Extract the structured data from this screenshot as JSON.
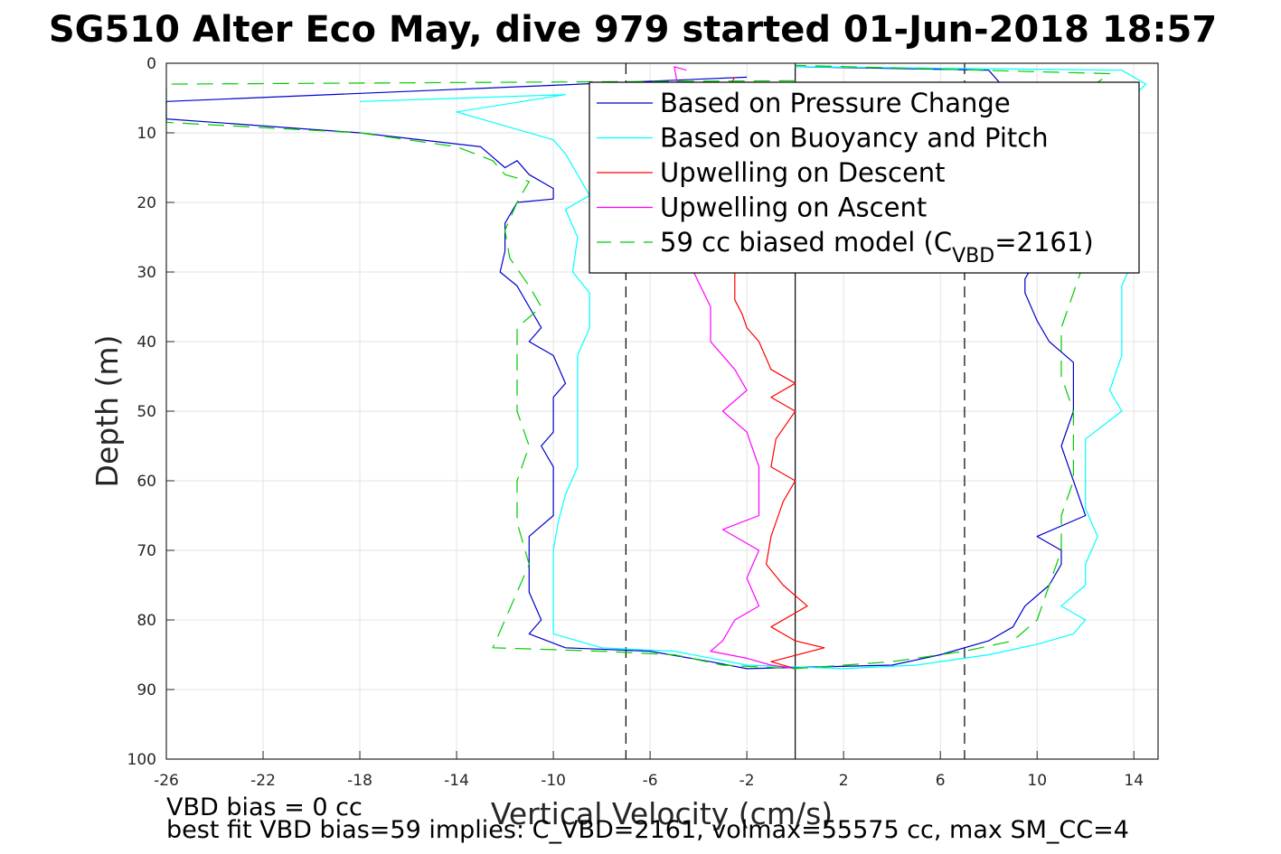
{
  "chart_data": {
    "type": "line",
    "title": "SG510 Alter Eco May, dive 979 started 01-Jun-2018 18:57",
    "xlabel": "Vertical Velocity (cm/s)",
    "ylabel": "Depth (m)",
    "xlim": [
      -26,
      15
    ],
    "ylim": [
      0,
      100
    ],
    "y_reversed": true,
    "grid": true,
    "legend_position": "top-right",
    "xticks": [
      "-26",
      "-22",
      "-18",
      "-14",
      "-10",
      "-6",
      "-2",
      "2",
      "6",
      "10",
      "14"
    ],
    "yticks": [
      "0",
      "10",
      "20",
      "30",
      "40",
      "50",
      "60",
      "70",
      "80",
      "90",
      "100"
    ],
    "reference_lines": {
      "zero_x": 0,
      "dashed_x": [
        -7,
        7
      ],
      "line_color": "#000000"
    },
    "series": [
      {
        "name": "Based on Pressure Change",
        "color": "#0000cc",
        "style": "solid",
        "points": [
          [
            -2,
            2
          ],
          [
            -26,
            5.5
          ],
          [
            -26,
            8
          ],
          [
            -18,
            10
          ],
          [
            -13,
            12
          ],
          [
            -12,
            15
          ],
          [
            -11.5,
            14
          ],
          [
            -11,
            16
          ],
          [
            -10,
            18
          ],
          [
            -10,
            19.5
          ],
          [
            -11.5,
            20
          ],
          [
            -12,
            23
          ],
          [
            -12,
            27
          ],
          [
            -12.2,
            30
          ],
          [
            -11.5,
            32
          ],
          [
            -11,
            35
          ],
          [
            -10.5,
            38
          ],
          [
            -11,
            40
          ],
          [
            -10,
            42
          ],
          [
            -9.5,
            46
          ],
          [
            -10,
            48
          ],
          [
            -10,
            53
          ],
          [
            -10.5,
            55
          ],
          [
            -10,
            58
          ],
          [
            -10,
            62
          ],
          [
            -10,
            65
          ],
          [
            -11,
            68
          ],
          [
            -11,
            72
          ],
          [
            -11,
            76
          ],
          [
            -10.5,
            80
          ],
          [
            -11,
            82
          ],
          [
            -9.5,
            84
          ],
          [
            -6,
            84.5
          ],
          [
            -3.5,
            86
          ],
          [
            -2,
            87
          ],
          [
            4,
            86.5
          ],
          [
            6,
            85
          ],
          [
            8,
            83
          ],
          [
            9,
            81
          ],
          [
            9.5,
            78
          ],
          [
            10.5,
            75
          ],
          [
            11,
            72
          ],
          [
            11,
            70
          ],
          [
            10,
            68
          ],
          [
            12,
            65
          ],
          [
            11.5,
            60
          ],
          [
            11,
            55
          ],
          [
            11.5,
            50
          ],
          [
            11.5,
            45
          ],
          [
            11.5,
            43
          ],
          [
            10.5,
            40
          ],
          [
            10,
            37
          ],
          [
            9.5,
            33
          ],
          [
            9.5,
            31
          ],
          [
            10,
            28
          ],
          [
            11,
            26
          ],
          [
            11,
            22
          ],
          [
            11,
            19
          ],
          [
            10.5,
            15
          ],
          [
            10,
            12
          ],
          [
            9.5,
            9
          ],
          [
            9,
            5
          ],
          [
            8,
            1
          ],
          [
            0,
            0.5
          ]
        ]
      },
      {
        "name": "Based on Buoyancy and Pitch",
        "color": "#00ffff",
        "style": "solid",
        "points": [
          [
            -18,
            5.5
          ],
          [
            -9.5,
            4.5
          ],
          [
            -14,
            7
          ],
          [
            -12,
            9
          ],
          [
            -10,
            11
          ],
          [
            -9.5,
            13
          ],
          [
            -9,
            16
          ],
          [
            -8.5,
            19
          ],
          [
            -9.5,
            21
          ],
          [
            -9,
            25
          ],
          [
            -9.2,
            30
          ],
          [
            -8.5,
            33
          ],
          [
            -8.5,
            38
          ],
          [
            -9,
            42
          ],
          [
            -9,
            48
          ],
          [
            -9,
            53
          ],
          [
            -9,
            58
          ],
          [
            -9.5,
            62
          ],
          [
            -9.8,
            66
          ],
          [
            -10,
            70
          ],
          [
            -10,
            75
          ],
          [
            -10,
            79
          ],
          [
            -10,
            82
          ],
          [
            -8,
            84
          ],
          [
            -5,
            84.5
          ],
          [
            -2,
            86.5
          ],
          [
            2,
            87
          ],
          [
            5,
            86.5
          ],
          [
            8,
            85
          ],
          [
            10,
            83.5
          ],
          [
            11.5,
            82
          ],
          [
            12,
            80
          ],
          [
            11,
            78
          ],
          [
            12,
            75
          ],
          [
            12,
            72
          ],
          [
            12.5,
            68
          ],
          [
            12,
            64
          ],
          [
            12,
            58
          ],
          [
            12,
            54
          ],
          [
            13.5,
            50
          ],
          [
            13,
            47
          ],
          [
            13.5,
            42
          ],
          [
            13.5,
            37
          ],
          [
            13.5,
            32
          ],
          [
            14,
            28
          ],
          [
            14,
            24
          ],
          [
            14,
            20
          ],
          [
            13.5,
            16
          ],
          [
            13,
            12
          ],
          [
            13,
            8
          ],
          [
            14.5,
            3
          ],
          [
            13.5,
            1
          ],
          [
            0,
            0.5
          ]
        ]
      },
      {
        "name": "Upwelling on Descent",
        "color": "#ff0000",
        "style": "solid",
        "points": [
          [
            -2.5,
            2
          ],
          [
            -3,
            5
          ],
          [
            -5,
            8
          ],
          [
            -1.5,
            6
          ],
          [
            -2,
            20
          ],
          [
            -2.5,
            30
          ],
          [
            -2.5,
            34
          ],
          [
            -2.2,
            36
          ],
          [
            -2,
            38
          ],
          [
            -1.5,
            40
          ],
          [
            -1,
            44
          ],
          [
            0,
            46
          ],
          [
            -1,
            48
          ],
          [
            0,
            50
          ],
          [
            -0.8,
            54
          ],
          [
            -1,
            58
          ],
          [
            0,
            60
          ],
          [
            -0.5,
            63
          ],
          [
            -1,
            68
          ],
          [
            -1.2,
            72
          ],
          [
            -0.5,
            75
          ],
          [
            0.5,
            78
          ],
          [
            -1,
            81
          ],
          [
            0,
            83
          ],
          [
            1.2,
            84
          ],
          [
            -1,
            86
          ],
          [
            0,
            87
          ]
        ]
      },
      {
        "name": "Upwelling on Ascent",
        "color": "#ff00ff",
        "style": "solid",
        "points": [
          [
            -4.5,
            1
          ],
          [
            -5,
            0.5
          ],
          [
            -4,
            20
          ],
          [
            -4.2,
            30
          ],
          [
            -3.5,
            35
          ],
          [
            -3.5,
            40
          ],
          [
            -2.5,
            44
          ],
          [
            -2,
            47
          ],
          [
            -3,
            50
          ],
          [
            -2,
            53
          ],
          [
            -1.5,
            58
          ],
          [
            -1.5,
            62
          ],
          [
            -1.5,
            65
          ],
          [
            -3,
            67
          ],
          [
            -1.5,
            70
          ],
          [
            -2,
            74
          ],
          [
            -1.5,
            78
          ],
          [
            -2.5,
            80
          ],
          [
            -3,
            83
          ],
          [
            -3.5,
            84.5
          ],
          [
            -2,
            85.5
          ],
          [
            -1,
            86.5
          ],
          [
            0,
            87
          ]
        ]
      },
      {
        "name": "59 cc biased model (C_VBD=2161)",
        "color": "#00cc00",
        "style": "dashed",
        "points": [
          [
            0,
            2.5
          ],
          [
            -26,
            3
          ],
          [
            -26,
            8.5
          ],
          [
            -18,
            10
          ],
          [
            -14,
            12
          ],
          [
            -12.5,
            14
          ],
          [
            -12,
            16
          ],
          [
            -11,
            17
          ],
          [
            -11.5,
            20
          ],
          [
            -12,
            24
          ],
          [
            -11.8,
            28
          ],
          [
            -11,
            32
          ],
          [
            -10.5,
            35
          ],
          [
            -11.5,
            38
          ],
          [
            -11.5,
            44
          ],
          [
            -11.5,
            50
          ],
          [
            -11,
            55
          ],
          [
            -11.5,
            60
          ],
          [
            -11.5,
            66
          ],
          [
            -11,
            72
          ],
          [
            -11.5,
            76
          ],
          [
            -12,
            80
          ],
          [
            -12.5,
            84
          ],
          [
            -8,
            84.5
          ],
          [
            -5,
            85
          ],
          [
            -3,
            86.5
          ],
          [
            0,
            87
          ],
          [
            4,
            86
          ],
          [
            7,
            84.5
          ],
          [
            9,
            83
          ],
          [
            10,
            80
          ],
          [
            10.5,
            75
          ],
          [
            11,
            70
          ],
          [
            11,
            65
          ],
          [
            11.5,
            60
          ],
          [
            11.5,
            55
          ],
          [
            11.5,
            50
          ],
          [
            11,
            45
          ],
          [
            11,
            38
          ],
          [
            11.5,
            33
          ],
          [
            12,
            28
          ],
          [
            12,
            24
          ],
          [
            12,
            20
          ],
          [
            11.5,
            16
          ],
          [
            11.2,
            12
          ],
          [
            11.2,
            8
          ],
          [
            12,
            4
          ],
          [
            13,
            1.5
          ],
          [
            0,
            0.3
          ]
        ]
      }
    ],
    "legend_labels": [
      "Based on Pressure Change",
      "Based on Buoyancy and Pitch",
      "Upwelling on Descent",
      "Upwelling on Ascent"
    ],
    "legend_last": {
      "prefix": "59 cc biased model (C",
      "sub": "VBD",
      "suffix": "=2161)"
    }
  },
  "footer": {
    "line1": "VBD bias = 0 cc",
    "line2": "best fit VBD bias=59 implies: C_VBD=2161, volmax=55575 cc, max SM_CC=4"
  }
}
